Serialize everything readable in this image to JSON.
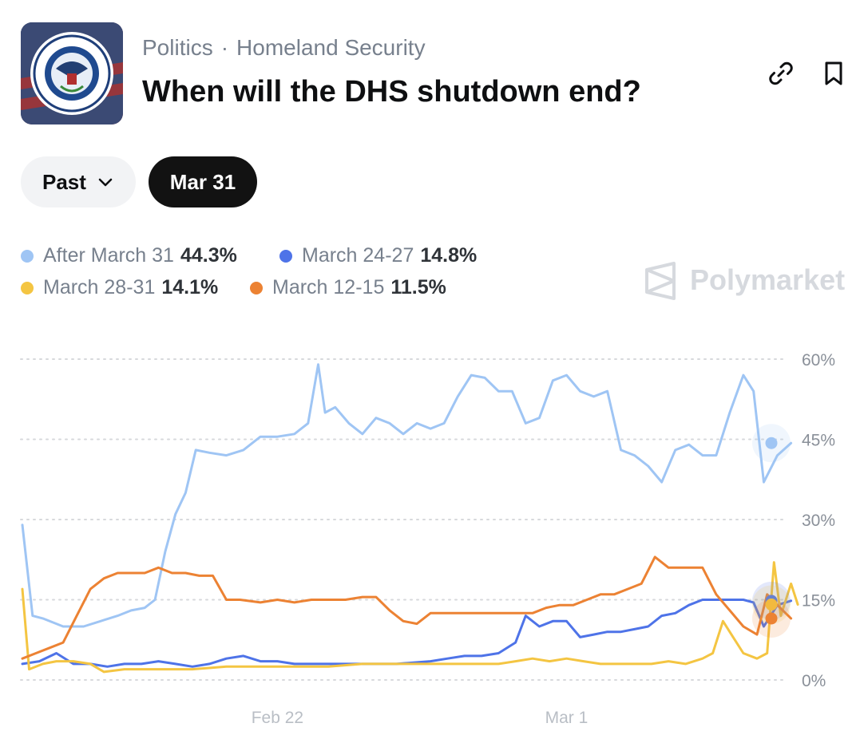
{
  "header": {
    "category": "Politics",
    "subcategory": "Homeland Security",
    "separator": "·",
    "title": "When will the DHS shutdown end?",
    "icons": [
      "dhs-seal-thumbnail",
      "link-icon",
      "bookmark-icon"
    ]
  },
  "filters": {
    "period_label": "Past",
    "selected_date": "Mar 31"
  },
  "brand": {
    "name": "Polymarket"
  },
  "colors": {
    "after_march_31": "#9fc5f4",
    "march_24_27": "#4e73e8",
    "march_28_31": "#f4c542",
    "march_12_15": "#ec8233",
    "grid": "#d7d9dc"
  },
  "chart_data": {
    "type": "line",
    "y_tick_labels": [
      "60%",
      "45%",
      "30%",
      "15%",
      "0%"
    ],
    "x_tick_labels": [
      "Feb 22",
      "Mar 1"
    ],
    "ylim": [
      0,
      60
    ],
    "x_unit": "days from first data point",
    "xlim": [
      0,
      22
    ],
    "x_ticks": [
      7.5,
      16
    ],
    "grid": true,
    "legend_position": "top-left",
    "series": [
      {
        "name": "After March 31",
        "current": "44.3%",
        "color": "#9fc5f4",
        "points": [
          [
            0,
            29
          ],
          [
            0.3,
            12
          ],
          [
            0.6,
            11.5
          ],
          [
            1.2,
            10
          ],
          [
            1.8,
            10
          ],
          [
            2.3,
            11
          ],
          [
            2.8,
            12
          ],
          [
            3.2,
            13
          ],
          [
            3.6,
            13.5
          ],
          [
            3.9,
            15
          ],
          [
            4.2,
            24
          ],
          [
            4.5,
            31
          ],
          [
            4.8,
            35
          ],
          [
            5.1,
            43
          ],
          [
            5.5,
            42.5
          ],
          [
            6,
            42
          ],
          [
            6.5,
            43
          ],
          [
            7,
            45.5
          ],
          [
            7.5,
            45.5
          ],
          [
            8,
            46
          ],
          [
            8.4,
            48
          ],
          [
            8.7,
            59
          ],
          [
            8.9,
            50
          ],
          [
            9.2,
            51
          ],
          [
            9.6,
            48
          ],
          [
            10,
            46
          ],
          [
            10.4,
            49
          ],
          [
            10.8,
            48
          ],
          [
            11.2,
            46
          ],
          [
            11.6,
            48
          ],
          [
            12,
            47
          ],
          [
            12.4,
            48
          ],
          [
            12.8,
            53
          ],
          [
            13.2,
            57
          ],
          [
            13.6,
            56.5
          ],
          [
            14,
            54
          ],
          [
            14.4,
            54
          ],
          [
            14.8,
            48
          ],
          [
            15.2,
            49
          ],
          [
            15.6,
            56
          ],
          [
            16,
            57
          ],
          [
            16.4,
            54
          ],
          [
            16.8,
            53
          ],
          [
            17.2,
            54
          ],
          [
            17.6,
            43
          ],
          [
            18,
            42
          ],
          [
            18.4,
            40
          ],
          [
            18.8,
            37
          ],
          [
            19.2,
            43
          ],
          [
            19.6,
            44
          ],
          [
            20,
            42
          ],
          [
            20.4,
            42
          ],
          [
            20.8,
            50
          ],
          [
            21.2,
            57
          ],
          [
            21.5,
            54
          ],
          [
            21.8,
            37
          ],
          [
            22.2,
            42
          ],
          [
            22.6,
            44.3
          ]
        ]
      },
      {
        "name": "March 24-27",
        "current": "14.8%",
        "color": "#4e73e8",
        "points": [
          [
            0,
            3
          ],
          [
            0.5,
            3.5
          ],
          [
            1,
            5
          ],
          [
            1.5,
            3
          ],
          [
            2,
            3
          ],
          [
            2.5,
            2.5
          ],
          [
            3,
            3
          ],
          [
            3.5,
            3
          ],
          [
            4,
            3.5
          ],
          [
            4.5,
            3
          ],
          [
            5,
            2.5
          ],
          [
            5.5,
            3
          ],
          [
            6,
            4
          ],
          [
            6.5,
            4.5
          ],
          [
            7,
            3.5
          ],
          [
            7.5,
            3.5
          ],
          [
            8,
            3
          ],
          [
            9,
            3
          ],
          [
            10,
            3
          ],
          [
            11,
            3
          ],
          [
            12,
            3.5
          ],
          [
            12.5,
            4
          ],
          [
            13,
            4.5
          ],
          [
            13.5,
            4.5
          ],
          [
            14,
            5
          ],
          [
            14.5,
            7
          ],
          [
            14.8,
            12
          ],
          [
            15.2,
            10
          ],
          [
            15.6,
            11
          ],
          [
            16,
            11
          ],
          [
            16.4,
            8
          ],
          [
            16.8,
            8.5
          ],
          [
            17.2,
            9
          ],
          [
            17.6,
            9
          ],
          [
            18,
            9.5
          ],
          [
            18.4,
            10
          ],
          [
            18.8,
            12
          ],
          [
            19.2,
            12.5
          ],
          [
            19.6,
            14
          ],
          [
            20,
            15
          ],
          [
            20.4,
            15
          ],
          [
            20.8,
            15
          ],
          [
            21.2,
            15
          ],
          [
            21.5,
            14.5
          ],
          [
            21.8,
            10
          ],
          [
            22.2,
            14
          ],
          [
            22.6,
            14.8
          ]
        ]
      },
      {
        "name": "March 28-31",
        "current": "14.1%",
        "color": "#f4c542",
        "points": [
          [
            0,
            17
          ],
          [
            0.2,
            2
          ],
          [
            0.6,
            3
          ],
          [
            1,
            3.5
          ],
          [
            1.5,
            3.5
          ],
          [
            2,
            3
          ],
          [
            2.4,
            1.5
          ],
          [
            3,
            2
          ],
          [
            4,
            2
          ],
          [
            5,
            2
          ],
          [
            6,
            2.5
          ],
          [
            7,
            2.5
          ],
          [
            8,
            2.5
          ],
          [
            9,
            2.5
          ],
          [
            10,
            3
          ],
          [
            11,
            3
          ],
          [
            12,
            3
          ],
          [
            13,
            3
          ],
          [
            14,
            3
          ],
          [
            14.5,
            3.5
          ],
          [
            15,
            4
          ],
          [
            15.5,
            3.5
          ],
          [
            16,
            4
          ],
          [
            16.5,
            3.5
          ],
          [
            17,
            3
          ],
          [
            17.5,
            3
          ],
          [
            18,
            3
          ],
          [
            18.5,
            3
          ],
          [
            19,
            3.5
          ],
          [
            19.5,
            3
          ],
          [
            20,
            4
          ],
          [
            20.3,
            5
          ],
          [
            20.6,
            11
          ],
          [
            20.9,
            8
          ],
          [
            21.2,
            5
          ],
          [
            21.6,
            4
          ],
          [
            21.9,
            5
          ],
          [
            22.1,
            22
          ],
          [
            22.3,
            12
          ],
          [
            22.6,
            18
          ],
          [
            22.8,
            14.1
          ]
        ]
      },
      {
        "name": "March 12-15",
        "current": "11.5%",
        "color": "#ec8233",
        "points": [
          [
            0,
            4
          ],
          [
            0.4,
            5
          ],
          [
            0.8,
            6
          ],
          [
            1.2,
            7
          ],
          [
            1.6,
            12
          ],
          [
            2,
            17
          ],
          [
            2.4,
            19
          ],
          [
            2.8,
            20
          ],
          [
            3.2,
            20
          ],
          [
            3.6,
            20
          ],
          [
            4,
            21
          ],
          [
            4.4,
            20
          ],
          [
            4.8,
            20
          ],
          [
            5.2,
            19.5
          ],
          [
            5.6,
            19.5
          ],
          [
            6,
            15
          ],
          [
            6.4,
            15
          ],
          [
            7,
            14.5
          ],
          [
            7.5,
            15
          ],
          [
            8,
            14.5
          ],
          [
            8.5,
            15
          ],
          [
            9,
            15
          ],
          [
            9.5,
            15
          ],
          [
            10,
            15.5
          ],
          [
            10.4,
            15.5
          ],
          [
            10.8,
            13
          ],
          [
            11.2,
            11
          ],
          [
            11.6,
            10.5
          ],
          [
            12,
            12.5
          ],
          [
            13,
            12.5
          ],
          [
            14,
            12.5
          ],
          [
            15,
            12.5
          ],
          [
            15.4,
            13.5
          ],
          [
            15.8,
            14
          ],
          [
            16.2,
            14
          ],
          [
            16.6,
            15
          ],
          [
            17,
            16
          ],
          [
            17.4,
            16
          ],
          [
            17.8,
            17
          ],
          [
            18.2,
            18
          ],
          [
            18.6,
            23
          ],
          [
            19,
            21
          ],
          [
            19.4,
            21
          ],
          [
            20,
            21
          ],
          [
            20.4,
            16
          ],
          [
            20.8,
            13
          ],
          [
            21.2,
            10
          ],
          [
            21.6,
            8.5
          ],
          [
            21.9,
            16
          ],
          [
            22.2,
            14
          ],
          [
            22.6,
            11.5
          ]
        ]
      }
    ]
  }
}
